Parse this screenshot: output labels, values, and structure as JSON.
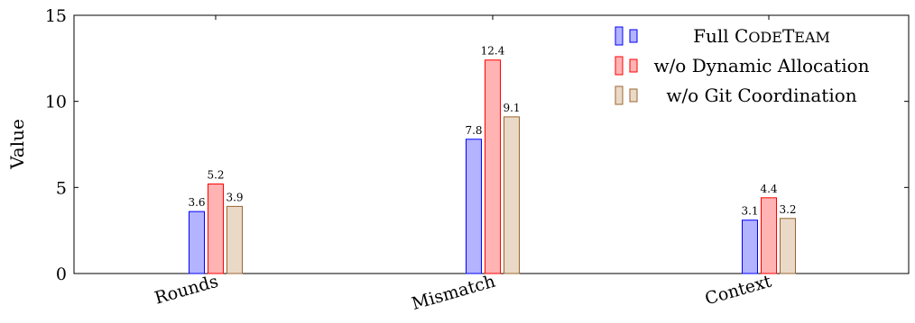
{
  "chart_data": {
    "type": "bar",
    "categories": [
      "Rounds",
      "Mismatch",
      "Context"
    ],
    "series": [
      {
        "name": "Full CodeTeam",
        "name_parts": [
          "Full ",
          "C",
          "ode",
          "T",
          "eam"
        ],
        "values": [
          3.6,
          7.8,
          3.1
        ],
        "fill": "#b3b3ff",
        "stroke": "#0000ff"
      },
      {
        "name": "w/o Dynamic Allocation",
        "values": [
          5.2,
          12.4,
          4.4
        ],
        "fill": "#ffb3b3",
        "stroke": "#ff0000"
      },
      {
        "name": "w/o Git Coordination",
        "values": [
          3.9,
          9.1,
          3.2
        ],
        "fill": "#ead9c6",
        "stroke": "#996633"
      }
    ],
    "ylabel": "Value",
    "ylim": [
      0,
      15
    ],
    "yticks": [
      0,
      5,
      10,
      15
    ],
    "grid": false,
    "legend_position": "top-right"
  }
}
